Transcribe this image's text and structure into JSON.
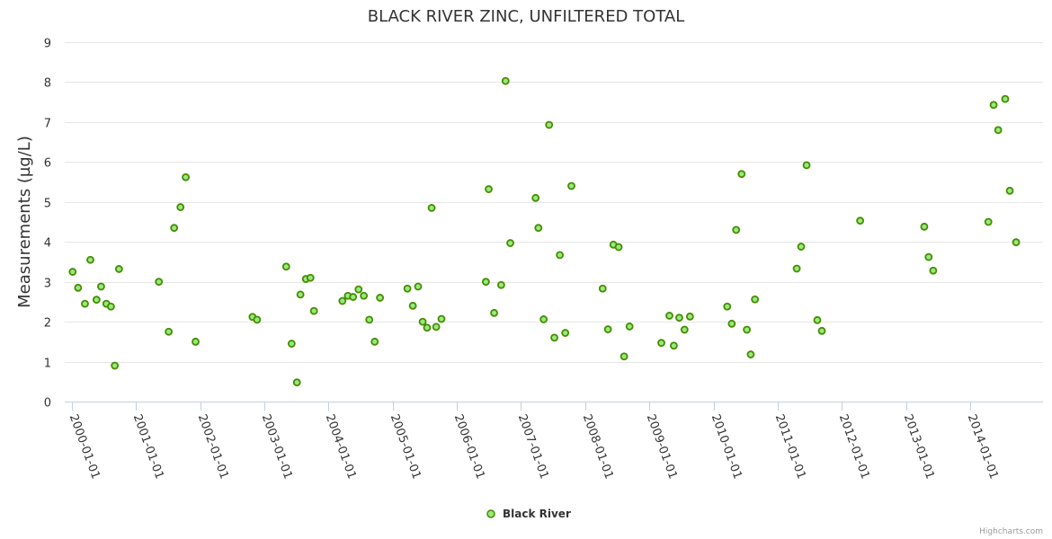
{
  "chart_data": {
    "type": "scatter",
    "title": "BLACK RIVER ZINC, UNFILTERED TOTAL",
    "ylabel": "Measurements (µg/L)",
    "xlabel": "",
    "ylim": [
      0,
      9
    ],
    "xlim": [
      "2000-01-01",
      "2014-12-31"
    ],
    "yticks": [
      "0",
      "1",
      "2",
      "3",
      "4",
      "5",
      "6",
      "7",
      "8",
      "9"
    ],
    "xticks": [
      "2000-01-01",
      "2001-01-01",
      "2002-01-01",
      "2003-01-01",
      "2004-01-01",
      "2005-01-01",
      "2006-01-01",
      "2007-01-01",
      "2008-01-01",
      "2009-01-01",
      "2010-01-01",
      "2011-01-01",
      "2012-01-01",
      "2013-01-01",
      "2014-01-01"
    ],
    "grid": true,
    "legend_position": "bottom-center",
    "series": [
      {
        "name": "Black River",
        "color": "#90ed7d",
        "marker_outline": "#4a8a00",
        "points": [
          [
            "2000-01-05",
            3.25
          ],
          [
            "2000-02-05",
            2.85
          ],
          [
            "2000-03-15",
            2.45
          ],
          [
            "2000-04-15",
            3.55
          ],
          [
            "2000-05-20",
            2.55
          ],
          [
            "2000-06-15",
            2.88
          ],
          [
            "2000-07-15",
            2.45
          ],
          [
            "2000-08-10",
            2.38
          ],
          [
            "2000-09-01",
            0.9
          ],
          [
            "2000-09-25",
            3.32
          ],
          [
            "2001-05-10",
            3.0
          ],
          [
            "2001-07-05",
            1.75
          ],
          [
            "2001-08-05",
            4.35
          ],
          [
            "2001-09-10",
            4.87
          ],
          [
            "2001-10-10",
            5.62
          ],
          [
            "2001-12-05",
            1.5
          ],
          [
            "2002-10-25",
            2.12
          ],
          [
            "2002-11-20",
            2.05
          ],
          [
            "2003-05-05",
            3.38
          ],
          [
            "2003-06-05",
            1.45
          ],
          [
            "2003-07-05",
            0.48
          ],
          [
            "2003-07-25",
            2.68
          ],
          [
            "2003-08-25",
            3.07
          ],
          [
            "2003-09-20",
            3.1
          ],
          [
            "2003-10-10",
            2.27
          ],
          [
            "2004-03-20",
            2.52
          ],
          [
            "2004-04-20",
            2.65
          ],
          [
            "2004-05-20",
            2.62
          ],
          [
            "2004-06-20",
            2.81
          ],
          [
            "2004-07-20",
            2.65
          ],
          [
            "2004-08-20",
            2.05
          ],
          [
            "2004-09-20",
            1.5
          ],
          [
            "2004-10-20",
            2.6
          ],
          [
            "2005-03-25",
            2.83
          ],
          [
            "2005-04-25",
            2.4
          ],
          [
            "2005-05-25",
            2.88
          ],
          [
            "2005-06-20",
            2.0
          ],
          [
            "2005-07-15",
            1.85
          ],
          [
            "2005-08-10",
            4.85
          ],
          [
            "2005-09-05",
            1.87
          ],
          [
            "2005-10-05",
            2.07
          ],
          [
            "2006-06-15",
            3.0
          ],
          [
            "2006-07-01",
            5.32
          ],
          [
            "2006-08-01",
            2.22
          ],
          [
            "2006-09-10",
            2.92
          ],
          [
            "2006-10-05",
            8.03
          ],
          [
            "2006-11-01",
            3.97
          ],
          [
            "2007-03-25",
            5.1
          ],
          [
            "2007-04-10",
            4.35
          ],
          [
            "2007-05-10",
            2.06
          ],
          [
            "2007-06-10",
            6.93
          ],
          [
            "2007-07-10",
            1.6
          ],
          [
            "2007-08-10",
            3.67
          ],
          [
            "2007-09-10",
            1.72
          ],
          [
            "2007-10-15",
            5.4
          ],
          [
            "2008-04-10",
            2.83
          ],
          [
            "2008-05-10",
            1.81
          ],
          [
            "2008-06-10",
            3.93
          ],
          [
            "2008-07-10",
            3.87
          ],
          [
            "2008-08-10",
            1.13
          ],
          [
            "2008-09-10",
            1.88
          ],
          [
            "2009-03-10",
            1.47
          ],
          [
            "2009-04-25",
            2.15
          ],
          [
            "2009-05-20",
            1.4
          ],
          [
            "2009-06-20",
            2.1
          ],
          [
            "2009-07-20",
            1.8
          ],
          [
            "2009-08-20",
            2.13
          ],
          [
            "2010-03-20",
            2.38
          ],
          [
            "2010-04-15",
            1.95
          ],
          [
            "2010-05-10",
            4.3
          ],
          [
            "2010-06-10",
            5.7
          ],
          [
            "2010-07-10",
            1.8
          ],
          [
            "2010-08-01",
            1.18
          ],
          [
            "2010-08-25",
            2.56
          ],
          [
            "2011-04-20",
            3.33
          ],
          [
            "2011-05-15",
            3.88
          ],
          [
            "2011-06-15",
            5.92
          ],
          [
            "2011-08-15",
            2.04
          ],
          [
            "2011-09-10",
            1.77
          ],
          [
            "2012-04-15",
            4.53
          ],
          [
            "2013-04-15",
            4.38
          ],
          [
            "2013-05-10",
            3.62
          ],
          [
            "2013-06-05",
            3.28
          ],
          [
            "2014-04-15",
            4.5
          ],
          [
            "2014-05-15",
            7.43
          ],
          [
            "2014-06-10",
            6.8
          ],
          [
            "2014-07-20",
            7.58
          ],
          [
            "2014-08-15",
            5.28
          ],
          [
            "2014-09-20",
            3.99
          ]
        ]
      }
    ]
  },
  "credits": "Highcharts.com"
}
